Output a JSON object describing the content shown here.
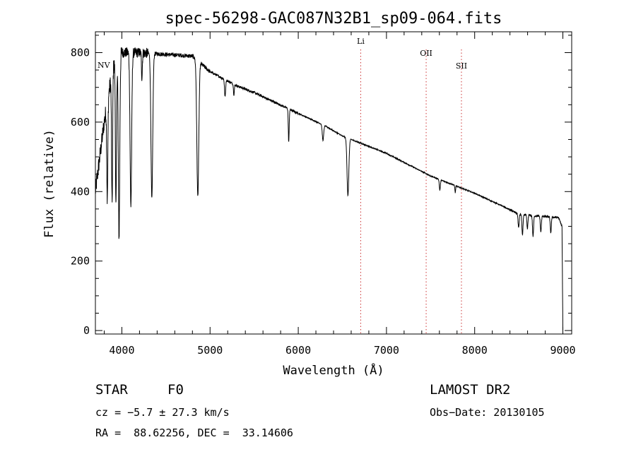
{
  "chart_data": {
    "type": "line",
    "title": "spec-56298-GAC087N32B1_sp09-064.fits",
    "xlabel": "Wavelength (Å)",
    "ylabel": "Flux (relative)",
    "xlim": [
      3700,
      9100
    ],
    "ylim": [
      -10,
      860
    ],
    "xticks": [
      4000,
      5000,
      6000,
      7000,
      8000,
      9000
    ],
    "yticks": [
      0,
      200,
      400,
      600,
      800
    ],
    "line_markers": [
      {
        "name": "NV",
        "wavelength": 3700
      },
      {
        "name": "Li",
        "wavelength": 6708
      },
      {
        "name": "OII",
        "wavelength": 7450
      },
      {
        "name": "SII",
        "wavelength": 7850
      }
    ],
    "continuum": [
      [
        3700,
        400
      ],
      [
        3800,
        600
      ],
      [
        3900,
        760
      ],
      [
        4000,
        800
      ],
      [
        4200,
        800
      ],
      [
        4500,
        795
      ],
      [
        4800,
        790
      ],
      [
        5000,
        745
      ],
      [
        5300,
        705
      ],
      [
        5500,
        685
      ],
      [
        6000,
        625
      ],
      [
        6300,
        590
      ],
      [
        6500,
        560
      ],
      [
        6700,
        540
      ],
      [
        7000,
        510
      ],
      [
        7500,
        445
      ],
      [
        8000,
        395
      ],
      [
        8300,
        360
      ],
      [
        8500,
        335
      ],
      [
        8700,
        330
      ],
      [
        8950,
        325
      ],
      [
        8990,
        300
      ],
      [
        9000,
        0
      ]
    ],
    "absorption_lines": [
      {
        "center": 3835,
        "depth": 280,
        "width": 6
      },
      {
        "center": 3889,
        "depth": 380,
        "width": 6
      },
      {
        "center": 3933,
        "depth": 420,
        "width": 6
      },
      {
        "center": 3968,
        "depth": 520,
        "width": 8
      },
      {
        "center": 4102,
        "depth": 440,
        "width": 9
      },
      {
        "center": 4227,
        "depth": 70,
        "width": 5
      },
      {
        "center": 4340,
        "depth": 420,
        "width": 10
      },
      {
        "center": 4861,
        "depth": 390,
        "width": 11
      },
      {
        "center": 5170,
        "depth": 50,
        "width": 6
      },
      {
        "center": 5270,
        "depth": 30,
        "width": 5
      },
      {
        "center": 5892,
        "depth": 95,
        "width": 5
      },
      {
        "center": 6280,
        "depth": 45,
        "width": 8
      },
      {
        "center": 6563,
        "depth": 165,
        "width": 10
      },
      {
        "center": 7605,
        "depth": 30,
        "width": 6
      },
      {
        "center": 7780,
        "depth": 20,
        "width": 4
      },
      {
        "center": 8498,
        "depth": 40,
        "width": 6
      },
      {
        "center": 8542,
        "depth": 60,
        "width": 6
      },
      {
        "center": 8598,
        "depth": 40,
        "width": 6
      },
      {
        "center": 8662,
        "depth": 60,
        "width": 6
      },
      {
        "center": 8750,
        "depth": 45,
        "width": 6
      },
      {
        "center": 8863,
        "depth": 45,
        "width": 6
      }
    ]
  },
  "info": {
    "object_class": "STAR",
    "subclass": "F0",
    "survey": "LAMOST DR2",
    "cz": "cz = −5.7 ± 27.3 km/s",
    "obs_date": "Obs−Date: 20130105",
    "coords": "RA =  88.62256, DEC =  33.14606"
  },
  "colors": {
    "marker": "#cc3333",
    "axis": "#000000"
  }
}
